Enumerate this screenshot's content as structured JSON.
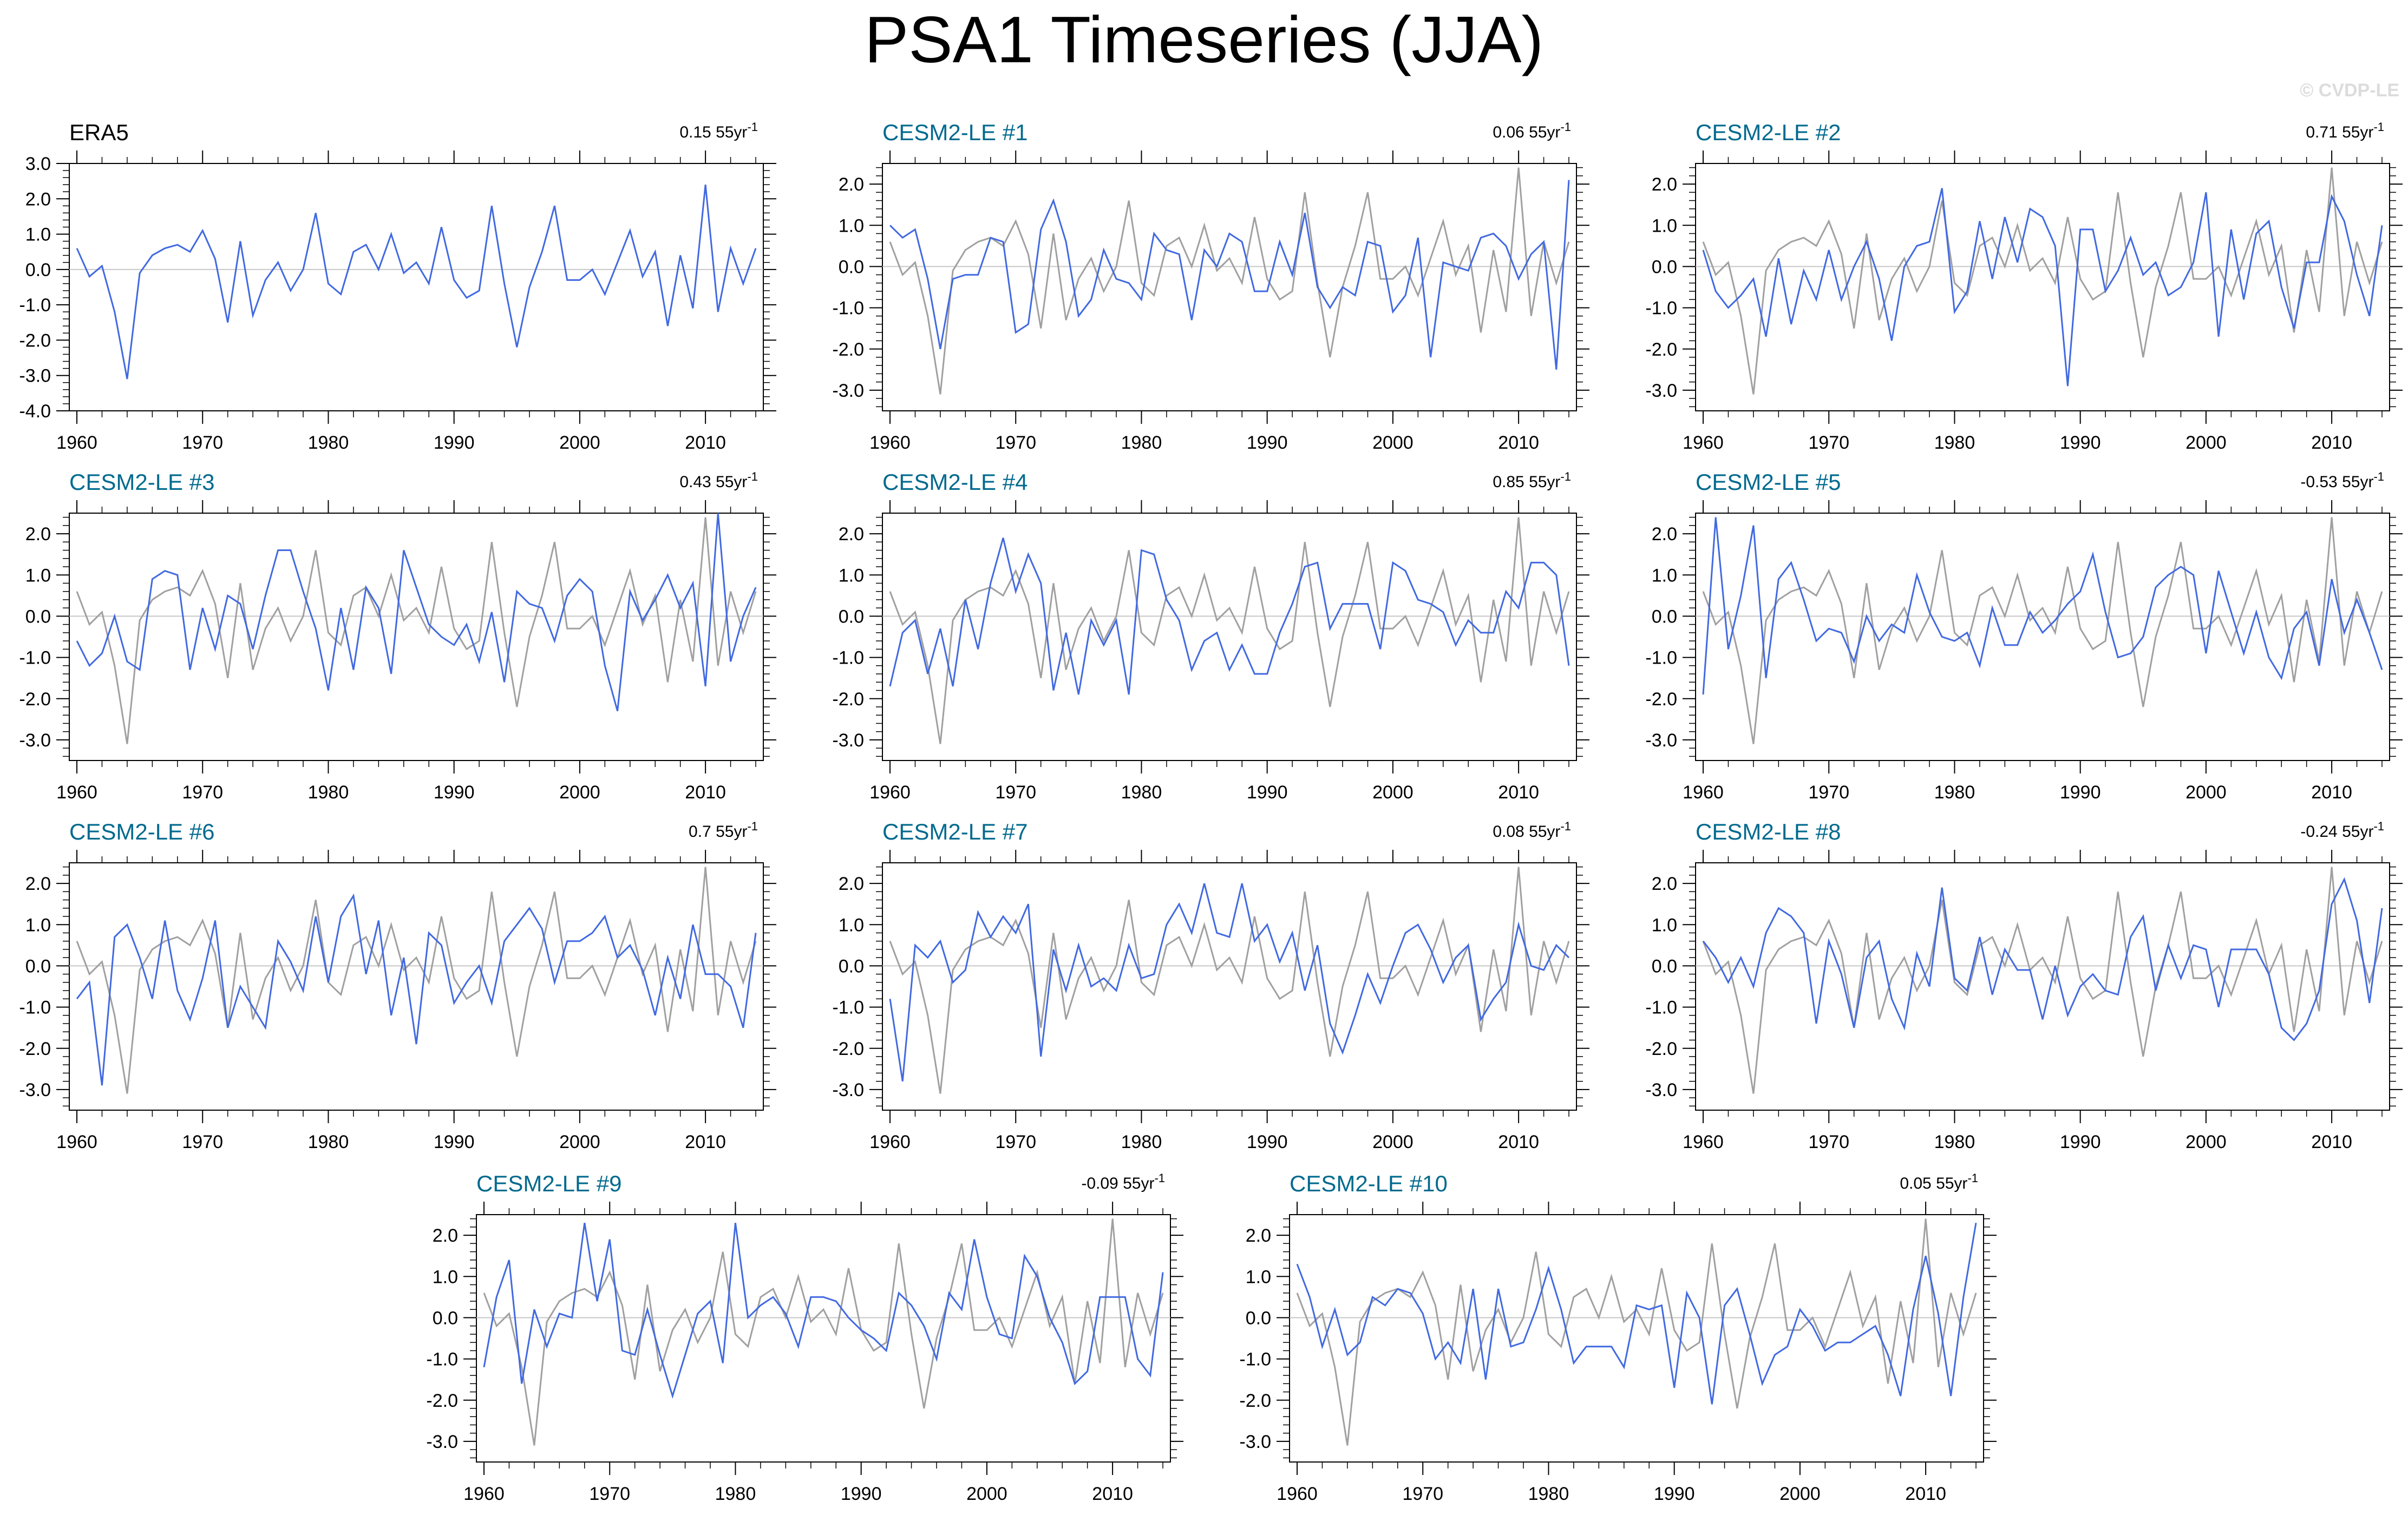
{
  "title": "PSA1 Timeseries (JJA)",
  "credit": "© CVDP-LE",
  "colors": {
    "model": "#4169e1",
    "obs_ref": "#a0a0a0",
    "obs_main": "#4169e1",
    "title_model": "#006a8e",
    "title_obs": "#000000",
    "zero": "#c8c8c8"
  },
  "chart_data": [
    {
      "type": "line",
      "title": "ERA5",
      "trend": "0.15 55yr",
      "trend_exp": "-1",
      "xlim": [
        1960,
        2014
      ],
      "ylim": [
        -4.0,
        3.0
      ],
      "xticks": [
        "1960",
        "1970",
        "1980",
        "1990",
        "2000",
        "2010"
      ],
      "yticks": [
        "-4.0",
        "-3.0",
        "-2.0",
        "-1.0",
        "0.0",
        "1.0",
        "2.0",
        "3.0"
      ],
      "series": [
        {
          "values": [
            0.6,
            -0.2,
            0.1,
            -1.2,
            -3.1,
            -0.1,
            0.4,
            0.6,
            0.7,
            0.5,
            1.1,
            0.3,
            -1.5,
            0.8,
            -1.3,
            -0.3,
            0.2,
            -0.6,
            0.0,
            1.6,
            -0.4,
            -0.7,
            0.5,
            0.7,
            0.0,
            1.0,
            -0.1,
            0.2,
            -0.4,
            1.2,
            -0.3,
            -0.8,
            -0.6,
            1.8,
            -0.4,
            -2.2,
            -0.5,
            0.5,
            1.8,
            -0.3,
            -0.3,
            0.0,
            -0.7,
            0.2,
            1.1,
            -0.2,
            0.5,
            -1.6,
            0.4,
            -1.1,
            2.4,
            -1.2,
            0.6,
            -0.4,
            0.6
          ]
        }
      ]
    },
    {
      "type": "line",
      "title": "CESM2-LE #1",
      "trend": "0.06 55yr",
      "trend_exp": "-1",
      "xlim": [
        1960,
        2014
      ],
      "ylim": [
        -3.5,
        2.5
      ],
      "xticks": [
        "1960",
        "1970",
        "1980",
        "1990",
        "2000",
        "2010"
      ],
      "yticks": [
        "-3.0",
        "-2.0",
        "-1.0",
        "0.0",
        "1.0",
        "2.0"
      ],
      "series": [
        {
          "values": [
            1.0,
            0.7,
            0.9,
            -0.3,
            -2.0,
            -0.3,
            -0.2,
            -0.2,
            0.7,
            0.6,
            -1.6,
            -1.4,
            0.9,
            1.6,
            0.6,
            -1.2,
            -0.8,
            0.4,
            -0.3,
            -0.4,
            -0.8,
            0.8,
            0.4,
            0.3,
            -1.3,
            0.4,
            0.0,
            0.8,
            0.6,
            -0.6,
            -0.6,
            0.6,
            -0.2,
            1.3,
            -0.5,
            -1.0,
            -0.5,
            -0.7,
            0.6,
            0.5,
            -1.1,
            -0.7,
            0.7,
            -2.2,
            0.1,
            0.0,
            -0.1,
            0.7,
            0.8,
            0.5,
            -0.3,
            0.3,
            0.6,
            -2.5,
            2.1
          ]
        }
      ]
    },
    {
      "type": "line",
      "title": "CESM2-LE #2",
      "trend": "0.71 55yr",
      "trend_exp": "-1",
      "xlim": [
        1960,
        2014
      ],
      "ylim": [
        -3.5,
        2.5
      ],
      "xticks": [
        "1960",
        "1970",
        "1980",
        "1990",
        "2000",
        "2010"
      ],
      "yticks": [
        "-3.0",
        "-2.0",
        "-1.0",
        "0.0",
        "1.0",
        "2.0"
      ],
      "series": [
        {
          "values": [
            0.4,
            -0.6,
            -1.0,
            -0.7,
            -0.3,
            -1.7,
            0.2,
            -1.4,
            -0.1,
            -0.8,
            0.4,
            -0.8,
            0.0,
            0.6,
            -0.3,
            -1.8,
            0.0,
            0.5,
            0.6,
            1.9,
            -1.1,
            -0.6,
            1.1,
            -0.3,
            1.2,
            0.1,
            1.4,
            1.2,
            0.5,
            -2.9,
            0.9,
            0.9,
            -0.6,
            -0.1,
            0.7,
            -0.2,
            0.1,
            -0.7,
            -0.5,
            0.1,
            1.8,
            -1.7,
            0.9,
            -0.8,
            0.8,
            1.1,
            -0.5,
            -1.5,
            0.1,
            0.1,
            1.7,
            1.1,
            -0.2,
            -1.2,
            1.0
          ]
        }
      ]
    },
    {
      "type": "line",
      "title": "CESM2-LE #3",
      "trend": "0.43 55yr",
      "trend_exp": "-1",
      "xlim": [
        1960,
        2014
      ],
      "ylim": [
        -3.5,
        2.5
      ],
      "xticks": [
        "1960",
        "1970",
        "1980",
        "1990",
        "2000",
        "2010"
      ],
      "yticks": [
        "-3.0",
        "-2.0",
        "-1.0",
        "0.0",
        "1.0",
        "2.0"
      ],
      "series": [
        {
          "values": [
            -0.6,
            -1.2,
            -0.9,
            0.0,
            -1.1,
            -1.3,
            0.9,
            1.1,
            1.0,
            -1.3,
            0.2,
            -0.8,
            0.5,
            0.3,
            -0.8,
            0.5,
            1.6,
            1.6,
            0.6,
            -0.3,
            -1.8,
            0.2,
            -1.3,
            0.7,
            0.2,
            -1.4,
            1.6,
            0.7,
            -0.2,
            -0.5,
            -0.7,
            -0.2,
            -1.1,
            0.1,
            -1.6,
            0.6,
            0.3,
            0.2,
            -0.6,
            0.5,
            0.9,
            0.6,
            -1.2,
            -2.3,
            0.6,
            -0.1,
            0.4,
            1.0,
            0.2,
            0.8,
            -1.7,
            2.5,
            -1.1,
            0.0,
            0.7
          ]
        }
      ]
    },
    {
      "type": "line",
      "title": "CESM2-LE #4",
      "trend": "0.85 55yr",
      "trend_exp": "-1",
      "xlim": [
        1960,
        2014
      ],
      "ylim": [
        -3.5,
        2.5
      ],
      "xticks": [
        "1960",
        "1970",
        "1980",
        "1990",
        "2000",
        "2010"
      ],
      "yticks": [
        "-3.0",
        "-2.0",
        "-1.0",
        "0.0",
        "1.0",
        "2.0"
      ],
      "series": [
        {
          "values": [
            -1.7,
            -0.4,
            -0.1,
            -1.4,
            -0.3,
            -1.7,
            0.4,
            -0.8,
            0.8,
            1.9,
            0.6,
            1.5,
            0.8,
            -1.8,
            -0.4,
            -1.9,
            -0.1,
            -0.7,
            -0.1,
            -1.9,
            1.6,
            1.5,
            0.4,
            -0.1,
            -1.3,
            -0.6,
            -0.4,
            -1.3,
            -0.7,
            -1.4,
            -1.4,
            -0.4,
            0.3,
            1.2,
            1.3,
            -0.3,
            0.3,
            0.3,
            0.3,
            -0.8,
            1.3,
            1.1,
            0.4,
            0.3,
            0.1,
            -0.7,
            -0.1,
            -0.4,
            -0.4,
            0.6,
            0.2,
            1.3,
            1.3,
            1.0,
            -1.2
          ]
        }
      ]
    },
    {
      "type": "line",
      "title": "CESM2-LE #5",
      "trend": "-0.53 55yr",
      "trend_exp": "-1",
      "xlim": [
        1960,
        2014
      ],
      "ylim": [
        -3.5,
        2.5
      ],
      "xticks": [
        "1960",
        "1970",
        "1980",
        "1990",
        "2000",
        "2010"
      ],
      "yticks": [
        "-3.0",
        "-2.0",
        "-1.0",
        "0.0",
        "1.0",
        "2.0"
      ],
      "series": [
        {
          "values": [
            -1.9,
            2.4,
            -0.8,
            0.5,
            2.2,
            -1.5,
            0.9,
            1.3,
            0.4,
            -0.6,
            -0.3,
            -0.4,
            -1.1,
            0.0,
            -0.6,
            -0.2,
            -0.4,
            1.0,
            0.1,
            -0.5,
            -0.6,
            -0.4,
            -1.2,
            0.2,
            -0.7,
            -0.7,
            0.1,
            -0.4,
            -0.1,
            0.3,
            0.6,
            1.5,
            0.1,
            -1.0,
            -0.9,
            -0.5,
            0.7,
            1.0,
            1.2,
            1.0,
            -0.9,
            1.1,
            0.1,
            -0.9,
            0.1,
            -1.0,
            -1.5,
            -0.3,
            0.1,
            -1.2,
            0.9,
            -0.4,
            0.4,
            -0.4,
            -1.3
          ]
        }
      ]
    },
    {
      "type": "line",
      "title": "CESM2-LE #6",
      "trend": "0.7 55yr",
      "trend_exp": "-1",
      "xlim": [
        1960,
        2014
      ],
      "ylim": [
        -3.5,
        2.5
      ],
      "xticks": [
        "1960",
        "1970",
        "1980",
        "1990",
        "2000",
        "2010"
      ],
      "yticks": [
        "-3.0",
        "-2.0",
        "-1.0",
        "0.0",
        "1.0",
        "2.0"
      ],
      "series": [
        {
          "values": [
            -0.8,
            -0.4,
            -2.9,
            0.7,
            1.0,
            0.2,
            -0.8,
            1.1,
            -0.6,
            -1.3,
            -0.3,
            1.1,
            -1.5,
            -0.5,
            -1.0,
            -1.5,
            0.6,
            0.1,
            -0.6,
            1.2,
            -0.4,
            1.2,
            1.7,
            -0.2,
            1.1,
            -1.2,
            0.2,
            -1.9,
            0.8,
            0.5,
            -0.9,
            -0.4,
            0.0,
            -0.9,
            0.6,
            1.0,
            1.4,
            0.9,
            -0.4,
            0.6,
            0.6,
            0.8,
            1.2,
            0.2,
            0.5,
            -0.1,
            -1.2,
            0.2,
            -0.8,
            1.0,
            -0.2,
            -0.2,
            -0.5,
            -1.5,
            0.8
          ]
        }
      ]
    },
    {
      "type": "line",
      "title": "CESM2-LE #7",
      "trend": "0.08 55yr",
      "trend_exp": "-1",
      "xlim": [
        1960,
        2014
      ],
      "ylim": [
        -3.5,
        2.5
      ],
      "xticks": [
        "1960",
        "1970",
        "1980",
        "1990",
        "2000",
        "2010"
      ],
      "yticks": [
        "-3.0",
        "-2.0",
        "-1.0",
        "0.0",
        "1.0",
        "2.0"
      ],
      "series": [
        {
          "values": [
            -0.8,
            -2.8,
            0.5,
            0.2,
            0.6,
            -0.4,
            -0.1,
            1.3,
            0.7,
            1.2,
            0.8,
            1.5,
            -2.2,
            0.4,
            -0.6,
            0.5,
            -0.5,
            -0.3,
            -0.6,
            0.5,
            -0.3,
            -0.2,
            1.0,
            1.5,
            0.8,
            2.0,
            0.8,
            0.7,
            2.0,
            0.6,
            1.0,
            0.1,
            0.8,
            -0.6,
            0.5,
            -1.4,
            -2.1,
            -1.2,
            -0.2,
            -0.9,
            0.0,
            0.8,
            1.0,
            0.4,
            -0.4,
            0.2,
            0.5,
            -1.3,
            -0.8,
            -0.4,
            1.0,
            0.0,
            -0.1,
            0.5,
            0.2
          ]
        }
      ]
    },
    {
      "type": "line",
      "title": "CESM2-LE #8",
      "trend": "-0.24 55yr",
      "trend_exp": "-1",
      "xlim": [
        1960,
        2014
      ],
      "ylim": [
        -3.5,
        2.5
      ],
      "xticks": [
        "1960",
        "1970",
        "1980",
        "1990",
        "2000",
        "2010"
      ],
      "yticks": [
        "-3.0",
        "-2.0",
        "-1.0",
        "0.0",
        "1.0",
        "2.0"
      ],
      "series": [
        {
          "values": [
            0.6,
            0.2,
            -0.4,
            0.2,
            -0.5,
            0.8,
            1.4,
            1.2,
            0.8,
            -1.4,
            0.6,
            -0.2,
            -1.5,
            0.2,
            0.6,
            -0.8,
            -1.5,
            0.3,
            -0.5,
            1.9,
            -0.3,
            -0.6,
            0.7,
            -0.7,
            0.4,
            -0.1,
            -0.1,
            -1.3,
            0.0,
            -1.2,
            -0.5,
            -0.2,
            -0.6,
            -0.7,
            0.7,
            1.2,
            -0.6,
            0.5,
            -0.3,
            0.5,
            0.4,
            -1.0,
            0.4,
            0.4,
            0.4,
            -0.2,
            -1.5,
            -1.8,
            -1.4,
            -0.6,
            1.5,
            2.1,
            1.1,
            -0.9,
            1.4
          ]
        }
      ]
    },
    {
      "type": "line",
      "title": "CESM2-LE #9",
      "trend": "-0.09 55yr",
      "trend_exp": "-1",
      "xlim": [
        1960,
        2014
      ],
      "ylim": [
        -3.5,
        2.5
      ],
      "xticks": [
        "1960",
        "1970",
        "1980",
        "1990",
        "2000",
        "2010"
      ],
      "yticks": [
        "-3.0",
        "-2.0",
        "-1.0",
        "0.0",
        "1.0",
        "2.0"
      ],
      "series": [
        {
          "values": [
            -1.2,
            0.5,
            1.4,
            -1.6,
            0.2,
            -0.7,
            0.1,
            0.0,
            2.3,
            0.4,
            1.9,
            -0.8,
            -0.9,
            0.2,
            -0.9,
            -1.9,
            -0.9,
            0.1,
            0.4,
            -1.1,
            2.3,
            0.0,
            0.3,
            0.5,
            0.1,
            -0.7,
            0.5,
            0.5,
            0.4,
            0.0,
            -0.3,
            -0.5,
            -0.8,
            0.6,
            0.3,
            -0.2,
            -1.0,
            0.6,
            0.2,
            1.9,
            0.5,
            -0.4,
            -0.5,
            1.5,
            1.0,
            0.0,
            -0.6,
            -1.6,
            -1.3,
            0.5,
            0.5,
            0.5,
            -1.0,
            -1.4,
            1.1
          ]
        }
      ]
    },
    {
      "type": "line",
      "title": "CESM2-LE #10",
      "trend": "0.05 55yr",
      "trend_exp": "-1",
      "xlim": [
        1960,
        2014
      ],
      "ylim": [
        -3.5,
        2.5
      ],
      "xticks": [
        "1960",
        "1970",
        "1980",
        "1990",
        "2000",
        "2010"
      ],
      "yticks": [
        "-3.0",
        "-2.0",
        "-1.0",
        "0.0",
        "1.0",
        "2.0"
      ],
      "series": [
        {
          "values": [
            1.3,
            0.5,
            -0.7,
            0.2,
            -0.9,
            -0.6,
            0.5,
            0.3,
            0.7,
            0.6,
            0.1,
            -1.0,
            -0.6,
            -1.1,
            0.7,
            -1.5,
            0.7,
            -0.7,
            -0.6,
            0.2,
            1.2,
            0.2,
            -1.1,
            -0.7,
            -0.7,
            -0.7,
            -1.2,
            0.3,
            0.2,
            0.3,
            -1.7,
            0.6,
            0.0,
            -2.1,
            0.3,
            0.7,
            -0.4,
            -1.6,
            -0.9,
            -0.7,
            0.2,
            -0.2,
            -0.8,
            -0.6,
            -0.6,
            -0.4,
            -0.2,
            -0.9,
            -1.9,
            0.2,
            1.5,
            0.1,
            -1.9,
            0.5,
            2.3
          ]
        }
      ]
    }
  ]
}
